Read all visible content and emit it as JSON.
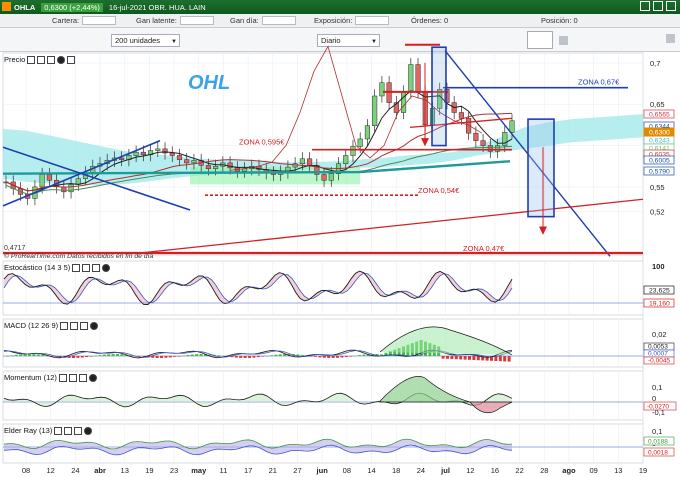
{
  "window": {
    "symbol": "OHLA",
    "change": "0,6300 (+2,44%)",
    "subtitle": "16-jul-2021 OBR. HUA. LAIN"
  },
  "infobar": {
    "cartera_label": "Cartera:",
    "ganancia_label": "Gan latente:",
    "gandia_label": "Gan día:",
    "exposicion_label": "Exposición:",
    "ordenes_label": "Órdenes:",
    "ordenes_value": "0",
    "posicion_label": "Posición:",
    "posicion_value": "0"
  },
  "toolbar": {
    "units_value": "200 unidades",
    "period_value": "Diario"
  },
  "price_pane": {
    "label": "Precio",
    "ticker_watermark": "OHL",
    "footer_text": "© ProRealTime.com  Datos recibidos en fin de día",
    "low_marker": "0,4717",
    "annotations": [
      "ZONA 0,595€",
      "ZONA 0,54€",
      "ZONA 0,47€",
      "ZONA 0,67€"
    ],
    "price_tags": [
      {
        "text": "0,6565",
        "color": "#d9364a"
      },
      {
        "text": "0,6344",
        "color": "#1e4fa8"
      },
      {
        "text": "0,6300",
        "color": "#e08a00"
      },
      {
        "text": "0,6243",
        "color": "#3fbfbf"
      },
      {
        "text": "0,6141",
        "color": "#7ac17a"
      },
      {
        "text": "0,6035",
        "color": "#c04040"
      },
      {
        "text": "0,6005",
        "color": "#1e4fa8"
      },
      {
        "text": "0,5790",
        "color": "#1e4fa8"
      }
    ]
  },
  "stoch_pane": {
    "label": "Estocástico (14 3 5)",
    "tags": [
      "23,625",
      "19,160"
    ]
  },
  "macd_pane": {
    "label": "MACD (12 26 9)",
    "tags": [
      "0,0053",
      "0,0007",
      "-0,0045"
    ]
  },
  "mom_pane": {
    "label": "Momentum (12)",
    "tags": [
      "-0,0270"
    ]
  },
  "elder_pane": {
    "label": "Elder Ray (13)",
    "tags": [
      "0,0188",
      "0,0018"
    ]
  },
  "chart_data": {
    "type": "candlestick",
    "symbol": "OHLA",
    "y_ticks": [
      0.52,
      0.55,
      0.6,
      0.65,
      0.7
    ],
    "y_tick_labels": [
      "0,52",
      "0,55",
      "0,6",
      "0,65",
      "0,7"
    ],
    "x_tick_labels": [
      "08",
      "12",
      "24",
      "abr",
      "13",
      "19",
      "23",
      "may",
      "11",
      "17",
      "21",
      "27",
      "jun",
      "08",
      "14",
      "18",
      "24",
      "jul",
      "12",
      "16",
      "22",
      "28",
      "ago",
      "09",
      "13",
      "19"
    ],
    "close_series": [
      0.556,
      0.548,
      0.541,
      0.536,
      0.55,
      0.565,
      0.558,
      0.55,
      0.544,
      0.553,
      0.56,
      0.567,
      0.575,
      0.578,
      0.582,
      0.585,
      0.583,
      0.588,
      0.592,
      0.589,
      0.594,
      0.596,
      0.591,
      0.588,
      0.583,
      0.579,
      0.582,
      0.576,
      0.572,
      0.575,
      0.579,
      0.573,
      0.569,
      0.572,
      0.575,
      0.571,
      0.567,
      0.565,
      0.568,
      0.574,
      0.578,
      0.584,
      0.576,
      0.565,
      0.558,
      0.566,
      0.578,
      0.588,
      0.599,
      0.608,
      0.624,
      0.66,
      0.676,
      0.652,
      0.64,
      0.665,
      0.698,
      0.665,
      0.625,
      0.645,
      0.668,
      0.652,
      0.64,
      0.633,
      0.615,
      0.606,
      0.6,
      0.593,
      0.6,
      0.616,
      0.63
    ],
    "last_price": 0.63,
    "zones": [
      {
        "label": "ZONA 0,67€",
        "value": 0.67
      },
      {
        "label": "ZONA 0,595€",
        "value": 0.595
      },
      {
        "label": "ZONA 0,54€",
        "value": 0.54
      },
      {
        "label": "ZONA 0,47€",
        "value": 0.47
      }
    ],
    "panes": {
      "stochastic": {
        "params": "14 3 5",
        "y_ticks": [
          100
        ],
        "last": [
          23.625,
          19.16
        ]
      },
      "macd": {
        "params": "12 26 9",
        "y_ticks": [
          0.02,
          0
        ],
        "last": [
          0.0053,
          0.0007,
          -0.0045
        ]
      },
      "momentum": {
        "params": "12",
        "y_ticks": [
          0.1,
          0,
          -0.1
        ],
        "last": -0.027
      },
      "elder_ray": {
        "params": "13",
        "y_ticks": [
          0.1,
          0
        ],
        "last": [
          0.0188,
          0.0018
        ]
      }
    }
  }
}
